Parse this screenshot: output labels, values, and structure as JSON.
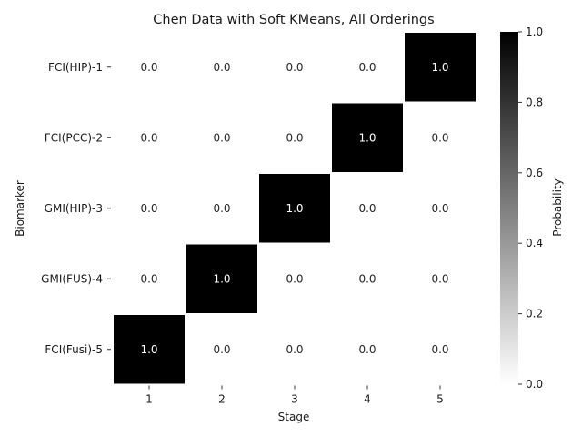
{
  "chart_data": {
    "type": "heatmap",
    "title": "Chen Data with Soft KMeans, All Orderings",
    "xlabel": "Stage",
    "ylabel": "Biomarker",
    "x_categories": [
      "1",
      "2",
      "3",
      "4",
      "5"
    ],
    "y_categories": [
      "FCI(HIP)-1",
      "FCI(PCC)-2",
      "GMI(HIP)-3",
      "GMI(FUS)-4",
      "FCI(Fusi)-5"
    ],
    "values": [
      [
        0.0,
        0.0,
        0.0,
        0.0,
        1.0
      ],
      [
        0.0,
        0.0,
        0.0,
        1.0,
        0.0
      ],
      [
        0.0,
        0.0,
        1.0,
        0.0,
        0.0
      ],
      [
        0.0,
        1.0,
        0.0,
        0.0,
        0.0
      ],
      [
        1.0,
        0.0,
        0.0,
        0.0,
        0.0
      ]
    ],
    "value_format": "0.0",
    "colorbar": {
      "label": "Probability",
      "range": [
        0.0,
        1.0
      ],
      "ticks": [
        "0.0",
        "0.2",
        "0.4",
        "0.6",
        "0.8",
        "1.0"
      ],
      "colormap": "Greys",
      "low_color": "#ffffff",
      "high_color": "#000000"
    },
    "grid": false
  }
}
